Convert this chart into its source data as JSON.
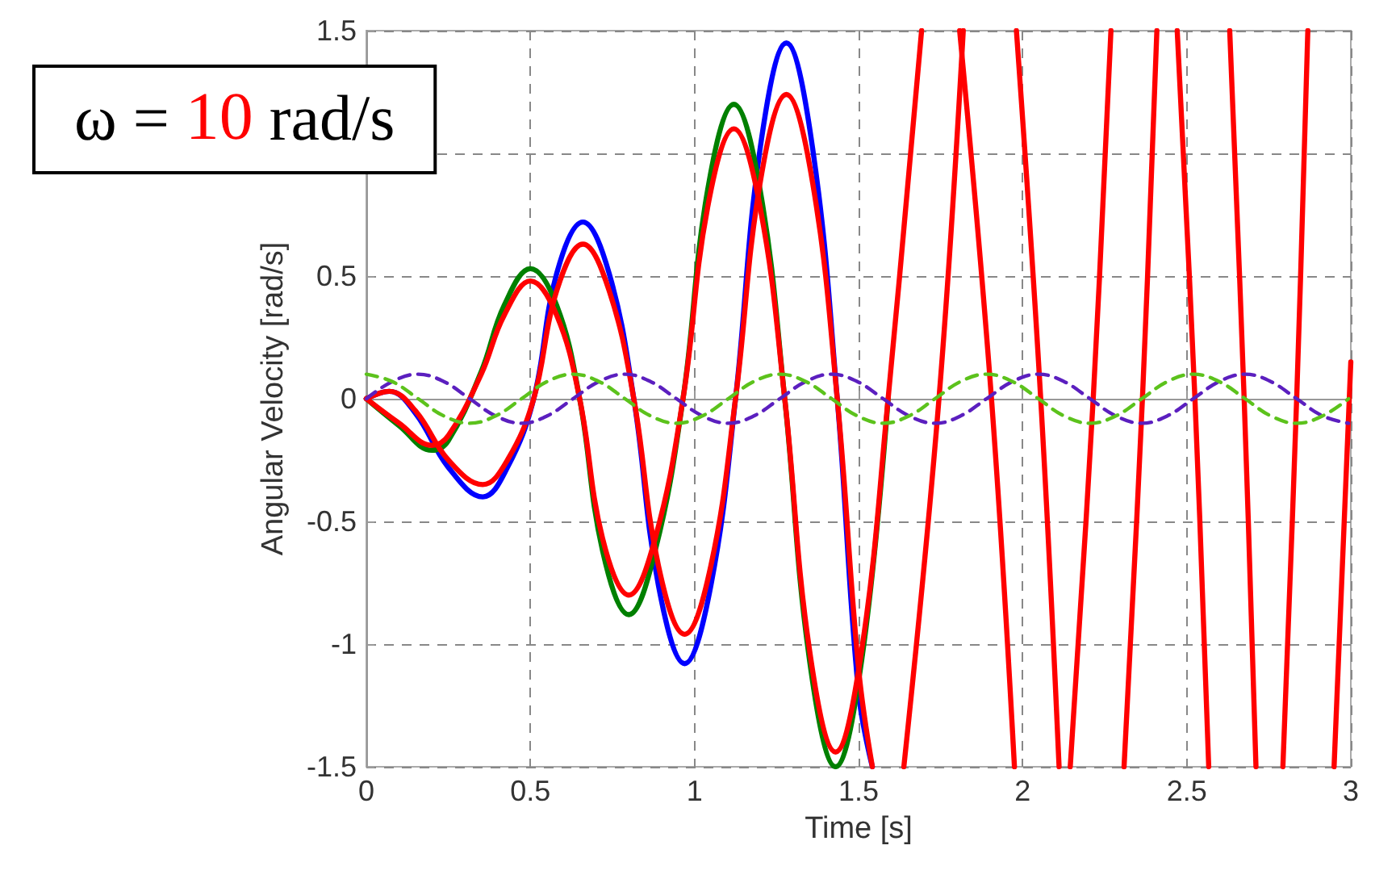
{
  "chart_data": {
    "type": "line",
    "xlabel": "Time [s]",
    "ylabel": "Angular Velocity [rad/s]",
    "annotations": [
      "ω = 10 rad/s"
    ],
    "xlim": [
      0,
      3
    ],
    "xticks": [
      0,
      0.5,
      1,
      1.5,
      2,
      2.5,
      3
    ],
    "ylim": [
      -1.5,
      1.5
    ],
    "yticks": [
      -1.5,
      -1,
      -0.5,
      0,
      0.5,
      {
        "value": 1,
        "label": null
      },
      1.5
    ],
    "grid": true,
    "marker": "none",
    "series": [
      {
        "color": "#0000ff",
        "x": [
          0,
          0.07,
          0.15,
          0.25,
          0.355,
          0.43,
          0.51,
          0.58,
          0.66,
          0.74,
          0.815,
          0.89,
          0.97,
          1.05,
          1.125,
          1.2,
          1.28,
          1.36,
          1.435,
          1.5,
          1.542
        ],
        "values": [
          0,
          0.03,
          -0.06,
          -0.28,
          -0.4,
          -0.28,
          0,
          0.51,
          0.72,
          0.51,
          0,
          -0.76,
          -1.08,
          -0.76,
          0,
          1.02,
          1.45,
          1.02,
          0,
          -1.2,
          -1.5
        ]
      },
      {
        "color": "#008000",
        "x": [
          0,
          0.1,
          0.2,
          0.25,
          0.35,
          0.42,
          0.5,
          0.58,
          0.65,
          0.72,
          0.8,
          0.88,
          0.965,
          1.04,
          1.12,
          1.2,
          1.275,
          1.35,
          1.43,
          1.51,
          1.59
        ],
        "values": [
          0,
          -0.11,
          -0.21,
          -0.17,
          0.11,
          0.38,
          0.53,
          0.38,
          0,
          -0.62,
          -0.88,
          -0.62,
          0,
          0.85,
          1.2,
          0.85,
          0,
          -1.06,
          -1.5,
          -1.06,
          0
        ]
      },
      {
        "color": "#ff0000",
        "x": [
          0,
          0.07,
          0.15,
          0.25,
          0.355,
          0.43,
          0.51,
          0.58,
          0.66,
          0.74,
          0.815,
          0.89,
          0.97,
          1.05,
          1.125,
          1.2,
          1.28,
          1.36,
          1.435,
          1.5,
          1.542,
          1.59,
          1.638,
          1.745,
          1.819,
          1.9,
          1.981,
          2.055,
          2.111,
          2.21,
          2.309,
          2.365,
          2.409,
          2.52,
          2.631,
          2.675,
          2.711,
          2.83,
          2.949,
          3
        ],
        "values": [
          0,
          0.03,
          -0.05,
          -0.25,
          -0.35,
          -0.25,
          0,
          0.44,
          0.63,
          0.44,
          0,
          -0.68,
          -0.96,
          -0.68,
          0,
          0.88,
          1.24,
          0.88,
          0,
          -1.1,
          -1.5,
          null,
          -1.5,
          0,
          1.5,
          null,
          1.5,
          0,
          -1.5,
          null,
          -1.5,
          0,
          1.5,
          null,
          1.5,
          0,
          -1.5,
          null,
          -1.5,
          0.15
        ]
      },
      {
        "color": "#ff0000",
        "x": [
          0,
          0.1,
          0.2,
          0.25,
          0.35,
          0.42,
          0.5,
          0.58,
          0.65,
          0.72,
          0.8,
          0.88,
          0.965,
          1.04,
          1.12,
          1.2,
          1.275,
          1.35,
          1.43,
          1.51,
          1.59,
          1.692,
          1.75,
          1.808,
          1.905,
          1.975,
          2.06,
          2.145,
          2.215,
          2.269,
          2.37,
          2.471,
          2.525,
          2.567,
          2.68,
          2.793,
          2.835,
          2.869
        ],
        "values": [
          0,
          -0.1,
          -0.19,
          -0.15,
          0.1,
          0.34,
          0.48,
          0.34,
          0,
          -0.57,
          -0.8,
          -0.57,
          0,
          0.78,
          1.1,
          0.78,
          0,
          -1.02,
          -1.44,
          -1.02,
          0,
          1.5,
          null,
          1.5,
          0,
          -1.5,
          null,
          -1.5,
          0,
          1.5,
          null,
          1.5,
          0,
          -1.5,
          null,
          -1.5,
          0,
          1.5
        ]
      },
      {
        "color": "#5b1fbf",
        "line_style": "dashed",
        "x": [
          0,
          0.079,
          0.158,
          0.236,
          0.315,
          0.394,
          0.473,
          0.551,
          0.63,
          0.709,
          0.788,
          0.866,
          0.945,
          1.024,
          1.103,
          1.181,
          1.26,
          1.339,
          1.418,
          1.496,
          1.575,
          1.654,
          1.733,
          1.811,
          1.89,
          1.969,
          2.048,
          2.126,
          2.205,
          2.284,
          2.363,
          2.441,
          2.52,
          2.599,
          2.678,
          2.756,
          2.835,
          2.914,
          2.993
        ],
        "values": [
          0,
          0.07,
          0.1,
          0.07,
          0,
          -0.07,
          -0.1,
          -0.07,
          0,
          0.07,
          0.1,
          0.07,
          0,
          -0.07,
          -0.1,
          -0.07,
          0,
          0.07,
          0.1,
          0.07,
          0,
          -0.07,
          -0.1,
          -0.07,
          0,
          0.07,
          0.1,
          0.07,
          0,
          -0.07,
          -0.1,
          -0.07,
          0,
          0.07,
          0.1,
          0.07,
          0,
          -0.07,
          -0.1
        ]
      },
      {
        "color": "#5cc21c",
        "line_style": "dashed",
        "x": [
          0,
          0.079,
          0.158,
          0.236,
          0.315,
          0.394,
          0.473,
          0.551,
          0.63,
          0.709,
          0.788,
          0.866,
          0.945,
          1.024,
          1.103,
          1.181,
          1.26,
          1.339,
          1.418,
          1.496,
          1.575,
          1.654,
          1.733,
          1.811,
          1.89,
          1.969,
          2.048,
          2.126,
          2.205,
          2.284,
          2.363,
          2.441,
          2.52,
          2.599,
          2.678,
          2.756,
          2.835,
          2.914,
          2.993
        ],
        "values": [
          0.1,
          0.07,
          0,
          -0.07,
          -0.1,
          -0.07,
          0,
          0.07,
          0.1,
          0.07,
          0,
          -0.07,
          -0.1,
          -0.07,
          0,
          0.07,
          0.1,
          0.07,
          0,
          -0.07,
          -0.1,
          -0.07,
          0,
          0.07,
          0.1,
          0.07,
          0,
          -0.07,
          -0.1,
          -0.07,
          0,
          0.07,
          0.1,
          0.07,
          0,
          -0.07,
          -0.1,
          -0.07,
          0
        ]
      }
    ]
  }
}
